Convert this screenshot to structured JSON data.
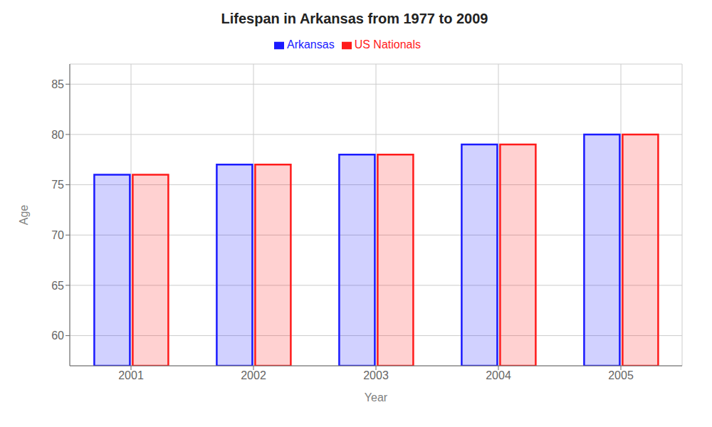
{
  "chart_data": {
    "type": "bar",
    "title": "Lifespan in Arkansas from 1977 to 2009",
    "xlabel": "Year",
    "ylabel": "Age",
    "categories": [
      "2001",
      "2002",
      "2003",
      "2004",
      "2005"
    ],
    "series": [
      {
        "name": "Arkansas",
        "color": "#1a1aff",
        "values": [
          76,
          77,
          78,
          79,
          80
        ]
      },
      {
        "name": "US Nationals",
        "color": "#ff1a1a",
        "values": [
          76,
          77,
          78,
          79,
          80
        ]
      }
    ],
    "ylim": [
      57,
      87
    ],
    "yticks": [
      60,
      65,
      70,
      75,
      80,
      85
    ],
    "grid": true,
    "legend": "top"
  }
}
